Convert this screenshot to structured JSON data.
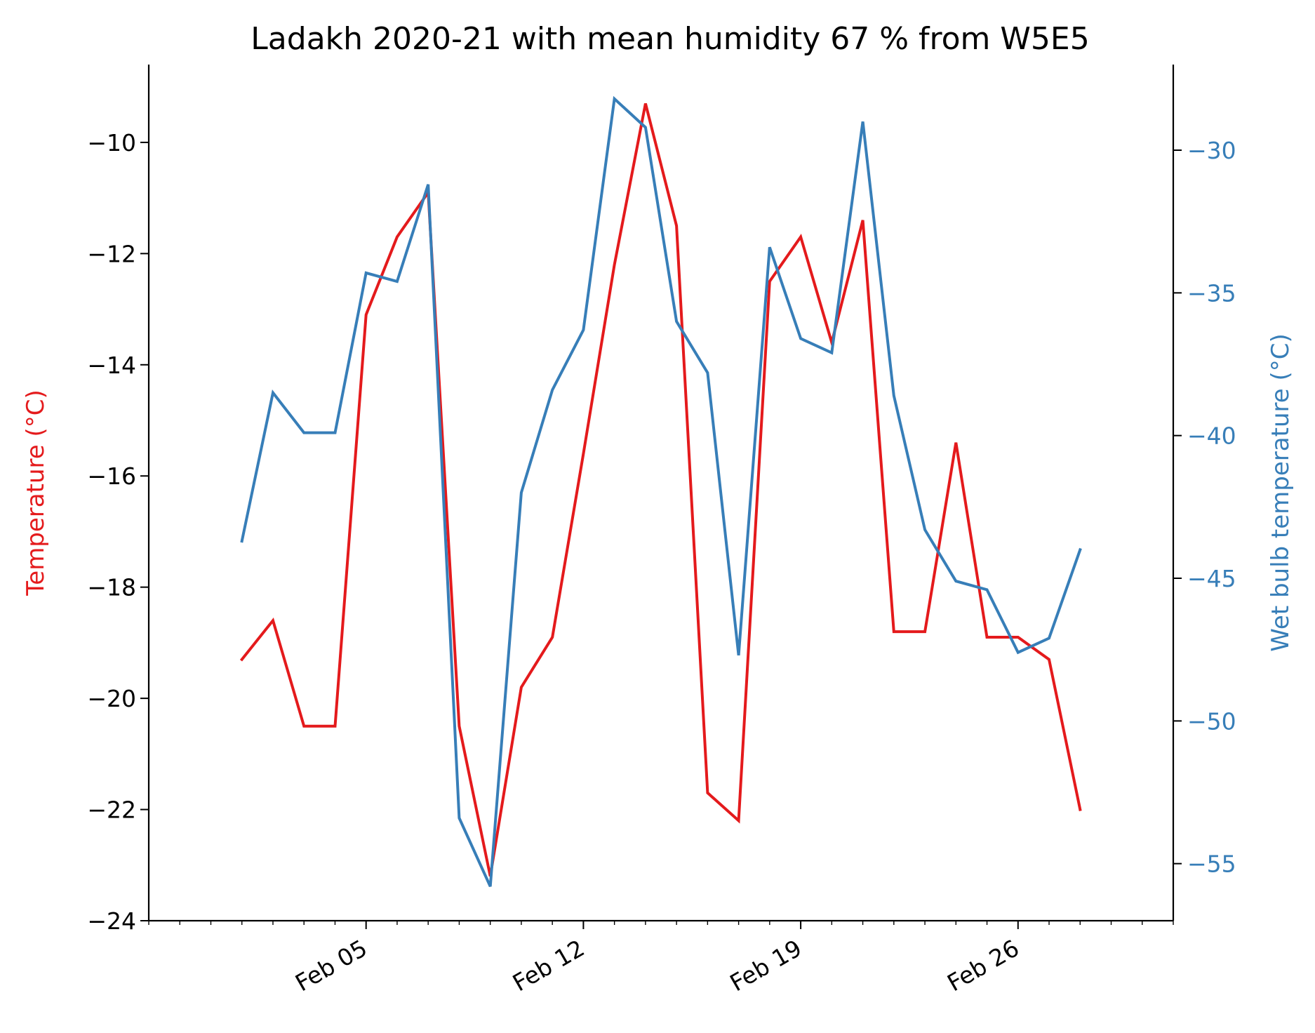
{
  "chart_data": {
    "type": "line",
    "title": "Ladakh 2020-21 with mean humidity 67 % from W5E5",
    "x": [
      "2021-02-01",
      "2021-02-02",
      "2021-02-03",
      "2021-02-04",
      "2021-02-05",
      "2021-02-06",
      "2021-02-07",
      "2021-02-08",
      "2021-02-09",
      "2021-02-10",
      "2021-02-11",
      "2021-02-12",
      "2021-02-13",
      "2021-02-14",
      "2021-02-15",
      "2021-02-16",
      "2021-02-17",
      "2021-02-18",
      "2021-02-19",
      "2021-02-20",
      "2021-02-21",
      "2021-02-22",
      "2021-02-23",
      "2021-02-24",
      "2021-02-25",
      "2021-02-26",
      "2021-02-27",
      "2021-02-28"
    ],
    "xticks": [
      {
        "date": "2021-02-05",
        "label": "Feb 05"
      },
      {
        "date": "2021-02-12",
        "label": "Feb 12"
      },
      {
        "date": "2021-02-19",
        "label": "Feb 19"
      },
      {
        "date": "2021-02-26",
        "label": "Feb 26"
      }
    ],
    "xlim": [
      "2021-01-29",
      "2021-03-03"
    ],
    "left_axis": {
      "label": "Temperature (°C)",
      "color": "#e41a1c",
      "ylim": [
        -24.0,
        -8.6
      ],
      "ticks": [
        -24,
        -22,
        -20,
        -18,
        -16,
        -14,
        -12,
        -10
      ],
      "tick_labels": [
        "−24",
        "−22",
        "−20",
        "−18",
        "−16",
        "−14",
        "−12",
        "−10"
      ]
    },
    "right_axis": {
      "label": "Wet bulb temperature (°C)",
      "color": "#377eb8",
      "ylim": [
        -57.0,
        -27.0
      ],
      "ticks": [
        -55,
        -50,
        -45,
        -40,
        -35,
        -30
      ],
      "tick_labels": [
        "−55",
        "−50",
        "−45",
        "−40",
        "−35",
        "−30"
      ]
    },
    "series": [
      {
        "axis": "left",
        "color": "#e41a1c",
        "values": [
          -19.3,
          -18.6,
          -20.5,
          -20.5,
          -13.1,
          -11.7,
          -10.9,
          -20.5,
          -23.2,
          -19.8,
          -18.9,
          -15.6,
          -12.2,
          -9.3,
          -11.5,
          -21.7,
          -22.2,
          -12.5,
          -11.7,
          -13.6,
          -11.4,
          -18.8,
          -18.8,
          -15.4,
          -18.9,
          -18.9,
          -19.3,
          -22.0
        ]
      },
      {
        "axis": "right",
        "color": "#377eb8",
        "values": [
          -43.7,
          -38.5,
          -39.9,
          -39.9,
          -34.3,
          -34.6,
          -31.2,
          -53.4,
          -55.8,
          -42.0,
          -38.4,
          -36.3,
          -28.2,
          -29.2,
          -36.0,
          -37.8,
          -47.7,
          -33.4,
          -36.6,
          -37.1,
          -29.0,
          -38.6,
          -43.3,
          -45.1,
          -45.4,
          -47.6,
          -47.1,
          -44.0
        ]
      }
    ]
  }
}
